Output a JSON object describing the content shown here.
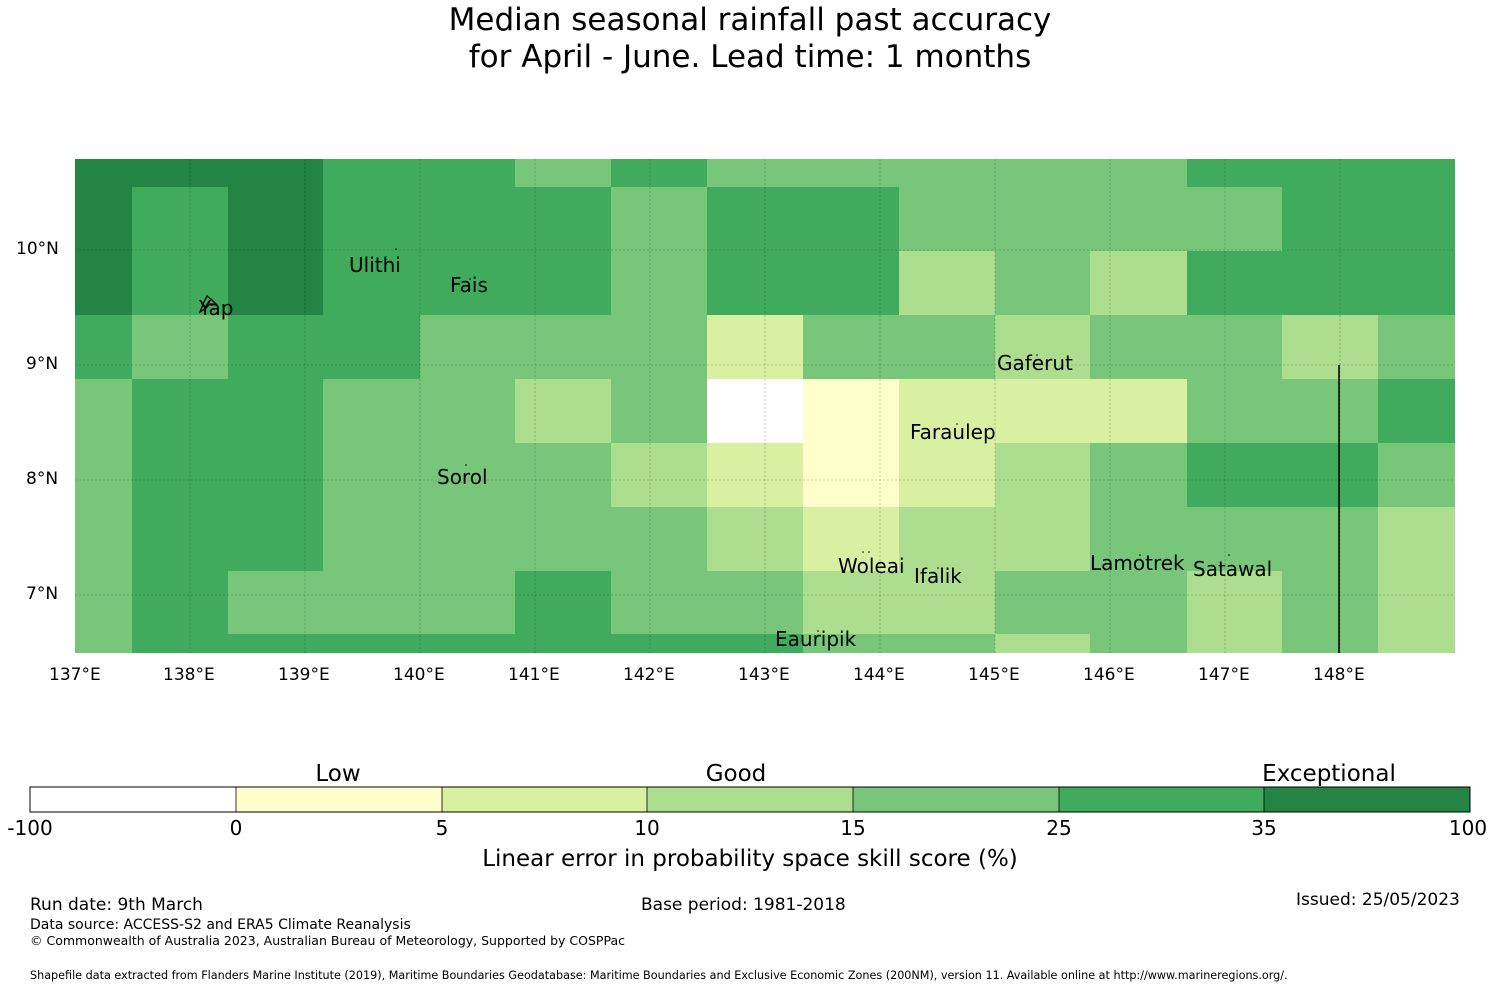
{
  "title": {
    "line1": "Median seasonal rainfall past accuracy",
    "line2": "for April - June. Lead time: 1 months"
  },
  "map": {
    "lat_labels": [
      "10°N",
      "9°N",
      "8°N",
      "7°N"
    ],
    "lon_labels": [
      "137°E",
      "138°E",
      "139°E",
      "140°E",
      "141°E",
      "142°E",
      "143°E",
      "144°E",
      "145°E",
      "146°E",
      "147°E",
      "148°E"
    ],
    "places": [
      "Ulithi",
      "Fais",
      "Yap",
      "Gaferut",
      "Faraulep",
      "Sorol",
      "Woleai",
      "Ifalik",
      "Lamotrek",
      "Satawal",
      "Eauripik"
    ]
  },
  "colorbar": {
    "categories": [
      "Low",
      "Good",
      "Exceptional"
    ],
    "ticks": [
      "-100",
      "0",
      "5",
      "10",
      "15",
      "25",
      "35",
      "100"
    ],
    "colors": [
      "#ffffff",
      "#ffffcc",
      "#d9f0a3",
      "#addd8e",
      "#78c679",
      "#41ab5d",
      "#238443"
    ],
    "label": "Linear error in probability space skill score (%)"
  },
  "footer": {
    "run_date": "Run date: 9th March",
    "base_period": "Base period: 1981-2018",
    "issued": "Issued: 25/05/2023",
    "source": "Data source: ACCESS-S2 and ERA5 Climate Reanalysis",
    "copyright": "© Commonwealth of Australia 2023, Australian Bureau of Meteorology, Supported by COSPPac",
    "shapefile": "Shapefile data extracted from Flanders Marine Institute (2019), Maritime Boundaries Geodatabase: Maritime Boundaries and Exclusive Economic Zones (200NM), version 11. Available online at http://www.marineregions.org/."
  }
}
